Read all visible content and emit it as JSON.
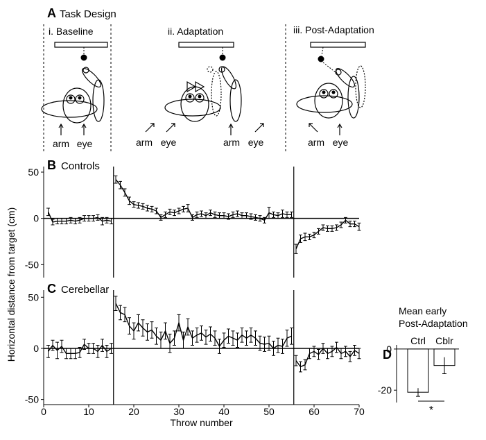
{
  "task_design": {
    "label": "A",
    "title": "Task Design",
    "panels": [
      {
        "title": "i. Baseline",
        "labels": [
          "arm",
          "eye"
        ]
      },
      {
        "title": "ii. Adaptation",
        "labels": [
          "arm",
          "eye",
          "arm",
          "eye"
        ]
      },
      {
        "title": "iii. Post-Adaptation",
        "labels": [
          "arm",
          "eye"
        ]
      }
    ]
  },
  "chart_data": [
    {
      "type": "line",
      "label": "B",
      "title": "Controls",
      "ylabel": "Horizontal distance from target (cm)",
      "x": [
        1,
        2,
        3,
        4,
        5,
        6,
        7,
        8,
        9,
        10,
        11,
        12,
        13,
        14,
        15,
        16,
        17,
        18,
        19,
        20,
        21,
        22,
        23,
        24,
        25,
        26,
        27,
        28,
        29,
        30,
        31,
        32,
        33,
        34,
        35,
        36,
        37,
        38,
        39,
        40,
        41,
        42,
        43,
        44,
        45,
        46,
        47,
        48,
        49,
        50,
        51,
        52,
        53,
        54,
        55,
        56,
        57,
        58,
        59,
        60,
        61,
        62,
        63,
        64,
        65,
        66,
        67,
        68,
        69,
        70
      ],
      "series": [
        {
          "name": "Controls",
          "color": "#000000",
          "values": [
            7,
            -4,
            -3,
            -3,
            -3,
            -2,
            -3,
            -2,
            0,
            0,
            0,
            1,
            -3,
            -2,
            -3,
            42,
            36,
            28,
            19,
            15,
            14,
            13,
            11,
            10,
            8,
            1,
            4,
            7,
            6,
            8,
            10,
            11,
            1,
            4,
            5,
            3,
            6,
            4,
            3,
            3,
            2,
            4,
            5,
            3,
            3,
            2,
            1,
            0,
            -2,
            6,
            4,
            3,
            5,
            4,
            4,
            -33,
            -22,
            -20,
            -20,
            -18,
            -14,
            -10,
            -11,
            -11,
            -10,
            -7,
            -2,
            -6,
            -6,
            -9
          ],
          "errors": [
            4,
            3,
            3,
            3,
            3,
            3,
            3,
            3,
            3,
            3,
            3,
            3,
            4,
            3,
            3,
            4,
            4,
            4,
            4,
            3,
            3,
            3,
            3,
            3,
            3,
            3,
            3,
            3,
            3,
            3,
            3,
            4,
            3,
            3,
            3,
            3,
            3,
            3,
            3,
            3,
            3,
            3,
            3,
            3,
            3,
            3,
            3,
            3,
            3,
            6,
            3,
            3,
            4,
            3,
            3,
            5,
            4,
            4,
            3,
            3,
            3,
            3,
            3,
            3,
            3,
            3,
            3,
            3,
            3,
            4
          ]
        }
      ],
      "xlim": [
        0,
        70
      ],
      "ylim": [
        -64,
        56
      ],
      "yticks": [
        -50,
        0,
        50
      ],
      "phase_boundaries": [
        15.5,
        55.5
      ],
      "hline": 0
    },
    {
      "type": "line",
      "label": "C",
      "title": "Cerebellar",
      "xlabel": "Throw number",
      "x": [
        1,
        2,
        3,
        4,
        5,
        6,
        7,
        8,
        9,
        10,
        11,
        12,
        13,
        14,
        15,
        16,
        17,
        18,
        19,
        20,
        21,
        22,
        23,
        24,
        25,
        26,
        27,
        28,
        29,
        30,
        31,
        32,
        33,
        34,
        35,
        36,
        37,
        38,
        39,
        40,
        41,
        42,
        43,
        44,
        45,
        46,
        47,
        48,
        49,
        50,
        51,
        52,
        53,
        54,
        55,
        56,
        57,
        58,
        59,
        60,
        61,
        62,
        63,
        64,
        65,
        66,
        67,
        68,
        69,
        70
      ],
      "series": [
        {
          "name": "Cerebellar",
          "color": "#000000",
          "values": [
            -3,
            3,
            -2,
            2,
            -5,
            -5,
            -5,
            -4,
            4,
            0,
            0,
            -3,
            3,
            -3,
            0,
            44,
            35,
            33,
            22,
            17,
            25,
            20,
            16,
            18,
            12,
            8,
            17,
            5,
            10,
            25,
            8,
            21,
            10,
            13,
            15,
            11,
            14,
            10,
            2,
            8,
            12,
            10,
            8,
            13,
            10,
            13,
            10,
            5,
            4,
            5,
            0,
            3,
            2,
            10,
            12,
            -12,
            -18,
            -16,
            -5,
            -3,
            -6,
            0,
            -5,
            -3,
            1,
            -5,
            -3,
            -8,
            -2,
            -5
          ],
          "errors": [
            6,
            5,
            8,
            6,
            5,
            5,
            5,
            5,
            5,
            5,
            5,
            6,
            6,
            6,
            5,
            7,
            7,
            7,
            8,
            8,
            8,
            8,
            8,
            8,
            8,
            8,
            8,
            9,
            7,
            8,
            8,
            8,
            7,
            7,
            7,
            7,
            7,
            7,
            7,
            7,
            7,
            7,
            7,
            7,
            7,
            7,
            7,
            7,
            7,
            7,
            7,
            7,
            7,
            8,
            8,
            5,
            5,
            5,
            5,
            5,
            5,
            5,
            5,
            5,
            5,
            5,
            5,
            5,
            5,
            5
          ]
        }
      ],
      "xlim": [
        0,
        70
      ],
      "ylim": [
        -55,
        57
      ],
      "xticks": [
        0,
        10,
        20,
        30,
        40,
        50,
        60,
        70
      ],
      "yticks": [
        -50,
        0,
        50
      ],
      "phase_boundaries": [
        15.5,
        55.5
      ],
      "hline": 0
    },
    {
      "type": "bar",
      "label": "D",
      "title": [
        "Mean early",
        "Post-Adaptation"
      ],
      "categories": [
        "Ctrl",
        "Cblr"
      ],
      "values": [
        -21,
        -8
      ],
      "errors": [
        2,
        4
      ],
      "color": "#ffffff",
      "ylim": [
        -26,
        2
      ],
      "yticks": [
        -20,
        0
      ],
      "annotation": "*"
    }
  ]
}
